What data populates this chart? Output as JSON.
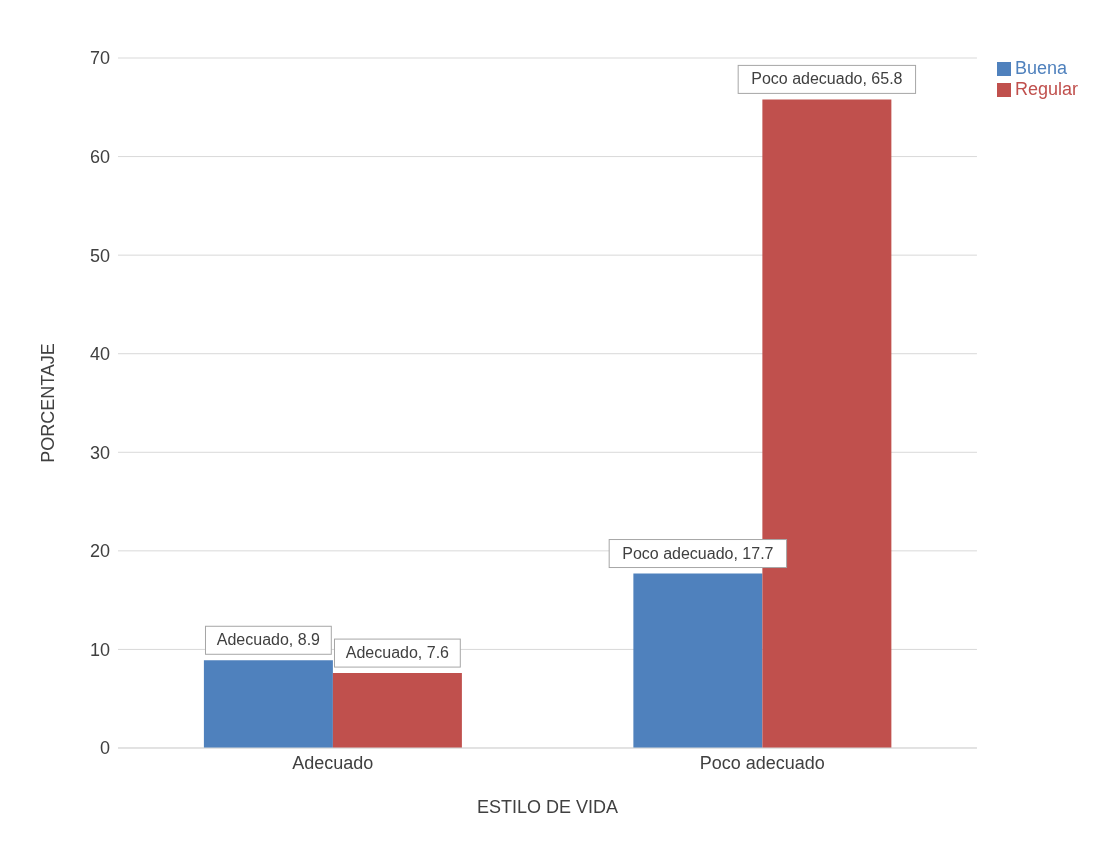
{
  "chart_data": {
    "type": "bar",
    "xlabel": "ESTILO DE VIDA",
    "ylabel": "PORCENTAJE",
    "categories": [
      "Adecuado",
      "Poco adecuado"
    ],
    "series": [
      {
        "name": "Buena",
        "color": "#4f81bd",
        "values": [
          8.9,
          17.7
        ],
        "value_labels": [
          "Adecuado, 8.9",
          "Poco adecuado, 17.7"
        ]
      },
      {
        "name": "Regular",
        "color": "#c0504d",
        "values": [
          7.6,
          65.8
        ],
        "value_labels": [
          "Adecuado, 7.6",
          "Poco adecuado, 65.8"
        ]
      }
    ],
    "ylim": [
      0,
      70
    ],
    "yticks": [
      0,
      10,
      20,
      30,
      40,
      50,
      60,
      70
    ],
    "grid": "y",
    "legend": "top right"
  }
}
